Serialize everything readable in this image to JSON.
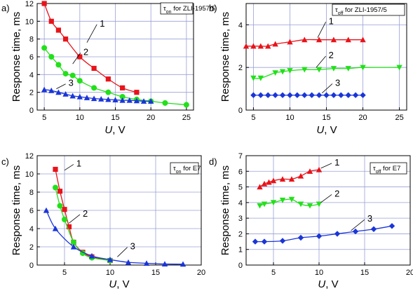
{
  "chart_data": [
    {
      "type": "line",
      "panel_label": "a)",
      "legend": {
        "symbol": "τ",
        "subscript": "on",
        "text": " for ZLI-1957/5"
      },
      "xlabel": "U, V",
      "ylabel": "Response time, ms",
      "xlim": [
        4,
        26
      ],
      "ylim": [
        0,
        12
      ],
      "xticks": [
        5,
        10,
        15,
        20,
        25
      ],
      "yticks": [
        0,
        2,
        4,
        6,
        8,
        10,
        12
      ],
      "grid": true,
      "series": [
        {
          "name": "1",
          "color": "#e8131a",
          "marker": "square",
          "x": [
            5,
            6,
            7,
            8,
            10,
            12,
            14,
            16,
            18
          ],
          "y": [
            12.0,
            10.0,
            9.0,
            8.0,
            6.0,
            4.7,
            3.5,
            2.5,
            2.0
          ]
        },
        {
          "name": "2",
          "color": "#22e01a",
          "marker": "circle",
          "x": [
            5,
            6,
            7,
            8,
            9,
            10,
            12,
            14,
            16,
            18,
            20,
            22,
            25
          ],
          "y": [
            7.0,
            6.0,
            5.1,
            4.1,
            3.9,
            3.3,
            2.5,
            2.0,
            1.5,
            1.2,
            1.0,
            0.8,
            0.6
          ]
        },
        {
          "name": "3",
          "color": "#1a35d8",
          "marker": "triangle-up",
          "x": [
            5,
            6,
            7,
            8,
            9,
            10,
            11,
            12,
            13,
            14,
            15,
            16,
            17,
            18,
            19,
            20
          ],
          "y": [
            2.3,
            2.2,
            2.0,
            1.8,
            1.6,
            1.5,
            1.4,
            1.3,
            1.25,
            1.2,
            1.15,
            1.1,
            1.1,
            1.05,
            1.0,
            1.0
          ]
        }
      ],
      "curve_labels": [
        {
          "text": "1",
          "x": 12.8,
          "y": 9.8,
          "tx": 11.0,
          "ty": 7.6
        },
        {
          "text": "2",
          "x": 10.5,
          "y": 6.6,
          "tx": 9.0,
          "ty": 5.2
        },
        {
          "text": "3",
          "x": 8.4,
          "y": 3.1,
          "tx": 6.7,
          "ty": 2.4
        }
      ]
    },
    {
      "type": "line",
      "panel_label": "b)",
      "legend": {
        "symbol": "τ",
        "subscript": "off",
        "text": " for ZLI-1957/5"
      },
      "xlabel": "U, V",
      "ylabel": "Response time, ms",
      "xlim": [
        4,
        26
      ],
      "ylim": [
        0,
        5
      ],
      "xticks": [
        5,
        10,
        15,
        20,
        25
      ],
      "yticks": [
        0,
        2,
        4
      ],
      "grid": true,
      "series": [
        {
          "name": "1",
          "color": "#e8131a",
          "marker": "triangle-up",
          "x": [
            4,
            5,
            6,
            7,
            8,
            10,
            12,
            14,
            16,
            18,
            20
          ],
          "y": [
            3.0,
            3.0,
            3.0,
            3.0,
            3.1,
            3.2,
            3.3,
            3.3,
            3.3,
            3.3,
            3.3
          ]
        },
        {
          "name": "2",
          "color": "#22e01a",
          "marker": "triangle-down",
          "x": [
            5,
            6,
            8,
            9,
            10,
            12,
            14,
            16,
            18,
            20,
            25
          ],
          "y": [
            1.5,
            1.5,
            1.75,
            1.8,
            1.85,
            1.9,
            1.9,
            1.95,
            1.95,
            2.0,
            2.0
          ]
        },
        {
          "name": "3",
          "color": "#1a35d8",
          "marker": "diamond",
          "x": [
            5,
            6,
            7,
            8,
            9,
            10,
            11,
            12,
            13,
            14,
            15,
            16,
            17,
            18,
            19,
            20
          ],
          "y": [
            0.7,
            0.7,
            0.7,
            0.7,
            0.7,
            0.7,
            0.7,
            0.7,
            0.7,
            0.7,
            0.7,
            0.7,
            0.7,
            0.7,
            0.7,
            0.7
          ]
        }
      ],
      "curve_labels": [
        {
          "text": "1",
          "x": 15.3,
          "y": 4.2,
          "tx": 13.8,
          "ty": 3.4
        },
        {
          "text": "2",
          "x": 15.3,
          "y": 2.6,
          "tx": 13.6,
          "ty": 2.0
        },
        {
          "text": "3",
          "x": 16.2,
          "y": 1.3,
          "tx": 14.4,
          "ty": 0.8
        }
      ]
    },
    {
      "type": "line",
      "panel_label": "c)",
      "legend": {
        "symbol": "τ",
        "subscript": "on",
        "text": " for E7"
      },
      "xlabel": "U, V",
      "ylabel": "Response time, ms",
      "xlim": [
        2,
        20
      ],
      "ylim": [
        0,
        12
      ],
      "xticks": [
        5,
        10,
        15,
        20
      ],
      "yticks": [
        0,
        2,
        4,
        6,
        8,
        10,
        12
      ],
      "grid": true,
      "series": [
        {
          "name": "1",
          "color": "#e8131a",
          "marker": "square",
          "x": [
            4,
            4.5,
            5,
            5.5,
            6,
            7,
            8,
            10
          ],
          "y": [
            10.5,
            8.1,
            6.1,
            4.2,
            2.5,
            1.4,
            0.9,
            0.5
          ]
        },
        {
          "name": "2",
          "color": "#22e01a",
          "marker": "circle",
          "x": [
            4,
            4.5,
            5,
            6,
            7,
            8,
            10
          ],
          "y": [
            8.5,
            6.5,
            5.0,
            2.5,
            1.3,
            0.8,
            0.5
          ]
        },
        {
          "name": "3",
          "color": "#1a35d8",
          "marker": "triangle-up",
          "x": [
            3,
            4,
            6,
            8,
            10,
            12,
            14,
            16,
            18
          ],
          "y": [
            6.0,
            4.0,
            2.0,
            1.0,
            0.6,
            0.3,
            0.2,
            0.12,
            0.1
          ]
        }
      ],
      "curve_labels": [
        {
          "text": "1",
          "x": 6.3,
          "y": 11.2,
          "tx": 5.0,
          "ty": 10.4
        },
        {
          "text": "2",
          "x": 7.0,
          "y": 5.7,
          "tx": 5.5,
          "ty": 4.6
        },
        {
          "text": "3",
          "x": 12.2,
          "y": 2.1,
          "tx": 10.8,
          "ty": 0.9
        }
      ]
    },
    {
      "type": "line",
      "panel_label": "d)",
      "legend": {
        "symbol": "τ",
        "subscript": "off",
        "text": " for E7"
      },
      "xlabel": "U, V",
      "ylabel": "Response time, ms",
      "xlim": [
        2,
        20
      ],
      "ylim": [
        0,
        7
      ],
      "xticks": [
        5,
        10,
        15,
        20
      ],
      "yticks": [
        0,
        1,
        2,
        3,
        4,
        5,
        6,
        7
      ],
      "grid": true,
      "series": [
        {
          "name": "1",
          "color": "#e8131a",
          "marker": "triangle-up",
          "x": [
            3.5,
            4,
            4.5,
            5,
            6,
            7,
            8,
            9,
            10
          ],
          "y": [
            5.0,
            5.2,
            5.3,
            5.4,
            5.5,
            5.5,
            5.7,
            6.0,
            6.1
          ]
        },
        {
          "name": "2",
          "color": "#22e01a",
          "marker": "triangle-down",
          "x": [
            3.5,
            4,
            5,
            6,
            7,
            8,
            9,
            10
          ],
          "y": [
            3.8,
            3.9,
            4.0,
            4.15,
            4.2,
            3.9,
            3.8,
            3.9
          ]
        },
        {
          "name": "3",
          "color": "#1a35d8",
          "marker": "diamond",
          "x": [
            3,
            4,
            6,
            8,
            10,
            12,
            14,
            16,
            18
          ],
          "y": [
            1.5,
            1.5,
            1.55,
            1.75,
            1.85,
            2.0,
            2.15,
            2.3,
            2.5
          ]
        }
      ],
      "curve_labels": [
        {
          "text": "1",
          "x": 11.7,
          "y": 6.6,
          "tx": 10.2,
          "ty": 6.2
        },
        {
          "text": "2",
          "x": 11.7,
          "y": 4.6,
          "tx": 10.2,
          "ty": 4.0
        },
        {
          "text": "3",
          "x": 15.3,
          "y": 3.0,
          "tx": 13.5,
          "ty": 2.2
        }
      ]
    }
  ]
}
